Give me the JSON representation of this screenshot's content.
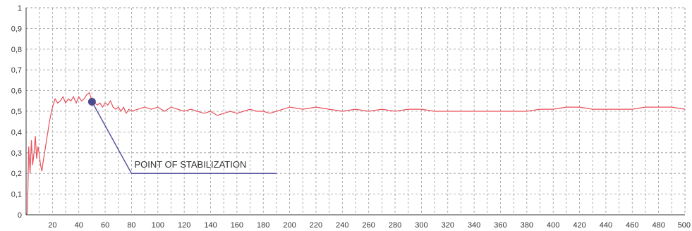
{
  "chart_data": {
    "type": "line",
    "title": "",
    "xlabel": "",
    "ylabel": "",
    "xlim": [
      0,
      500
    ],
    "ylim": [
      0,
      1
    ],
    "grid": true,
    "legend": "none",
    "x_ticks": [
      "20",
      "40",
      "60",
      "80",
      "100",
      "120",
      "140",
      "160",
      "180",
      "200",
      "220",
      "240",
      "260",
      "280",
      "300",
      "320",
      "340",
      "360",
      "380",
      "400",
      "420",
      "440",
      "460",
      "480",
      "500"
    ],
    "x_tick_values": [
      20,
      40,
      60,
      80,
      100,
      120,
      140,
      160,
      180,
      200,
      220,
      240,
      260,
      280,
      300,
      320,
      340,
      360,
      380,
      400,
      420,
      440,
      460,
      480,
      500
    ],
    "y_ticks": [
      "0",
      "0,1",
      "0,2",
      "0,3",
      "0,4",
      "0,5",
      "0,6",
      "0,7",
      "0,8",
      "0,9",
      "1"
    ],
    "y_tick_values": [
      0,
      0.1,
      0.2,
      0.3,
      0.4,
      0.5,
      0.6,
      0.7,
      0.8,
      0.9,
      1
    ],
    "series": [
      {
        "color": "#e8505a",
        "points": [
          [
            0,
            0
          ],
          [
            1,
            0.01
          ],
          [
            2,
            0.33
          ],
          [
            3,
            0.2
          ],
          [
            4,
            0.36
          ],
          [
            5,
            0.24
          ],
          [
            6,
            0.3
          ],
          [
            7,
            0.38
          ],
          [
            8,
            0.27
          ],
          [
            9,
            0.33
          ],
          [
            10,
            0.29
          ],
          [
            11,
            0.24
          ],
          [
            12,
            0.21
          ],
          [
            13,
            0.26
          ],
          [
            14,
            0.3
          ],
          [
            16,
            0.38
          ],
          [
            18,
            0.46
          ],
          [
            20,
            0.52
          ],
          [
            22,
            0.56
          ],
          [
            24,
            0.54
          ],
          [
            26,
            0.55
          ],
          [
            28,
            0.57
          ],
          [
            30,
            0.54
          ],
          [
            32,
            0.56
          ],
          [
            34,
            0.55
          ],
          [
            36,
            0.57
          ],
          [
            38,
            0.54
          ],
          [
            40,
            0.57
          ],
          [
            42,
            0.55
          ],
          [
            44,
            0.56
          ],
          [
            46,
            0.58
          ],
          [
            48,
            0.59
          ],
          [
            50,
            0.55
          ],
          [
            52,
            0.54
          ],
          [
            54,
            0.53
          ],
          [
            56,
            0.54
          ],
          [
            58,
            0.52
          ],
          [
            60,
            0.54
          ],
          [
            62,
            0.53
          ],
          [
            64,
            0.55
          ],
          [
            66,
            0.52
          ],
          [
            68,
            0.51
          ],
          [
            70,
            0.52
          ],
          [
            72,
            0.5
          ],
          [
            74,
            0.52
          ],
          [
            76,
            0.49
          ],
          [
            78,
            0.51
          ],
          [
            80,
            0.5
          ],
          [
            85,
            0.51
          ],
          [
            90,
            0.52
          ],
          [
            95,
            0.51
          ],
          [
            100,
            0.52
          ],
          [
            105,
            0.5
          ],
          [
            110,
            0.52
          ],
          [
            115,
            0.51
          ],
          [
            120,
            0.5
          ],
          [
            125,
            0.51
          ],
          [
            130,
            0.5
          ],
          [
            135,
            0.49
          ],
          [
            140,
            0.5
          ],
          [
            145,
            0.48
          ],
          [
            150,
            0.49
          ],
          [
            155,
            0.5
          ],
          [
            160,
            0.49
          ],
          [
            165,
            0.5
          ],
          [
            170,
            0.51
          ],
          [
            175,
            0.5
          ],
          [
            180,
            0.5
          ],
          [
            185,
            0.49
          ],
          [
            190,
            0.5
          ],
          [
            195,
            0.51
          ],
          [
            200,
            0.52
          ],
          [
            210,
            0.51
          ],
          [
            220,
            0.52
          ],
          [
            230,
            0.51
          ],
          [
            240,
            0.5
          ],
          [
            250,
            0.51
          ],
          [
            260,
            0.5
          ],
          [
            270,
            0.51
          ],
          [
            280,
            0.5
          ],
          [
            290,
            0.51
          ],
          [
            300,
            0.51
          ],
          [
            310,
            0.5
          ],
          [
            320,
            0.5
          ],
          [
            330,
            0.5
          ],
          [
            340,
            0.5
          ],
          [
            350,
            0.5
          ],
          [
            360,
            0.5
          ],
          [
            370,
            0.5
          ],
          [
            380,
            0.5
          ],
          [
            390,
            0.51
          ],
          [
            400,
            0.51
          ],
          [
            410,
            0.52
          ],
          [
            420,
            0.52
          ],
          [
            430,
            0.51
          ],
          [
            440,
            0.51
          ],
          [
            450,
            0.51
          ],
          [
            460,
            0.51
          ],
          [
            470,
            0.52
          ],
          [
            480,
            0.52
          ],
          [
            490,
            0.52
          ],
          [
            500,
            0.51
          ]
        ]
      }
    ],
    "annotation": {
      "text": "POINT OF STABILIZATION",
      "marker": [
        50,
        0.546
      ],
      "elbow": [
        80,
        0.2
      ],
      "end": [
        190,
        0.2
      ],
      "line_color": "#5a5aa0",
      "marker_color": "#4a4a8c"
    }
  }
}
